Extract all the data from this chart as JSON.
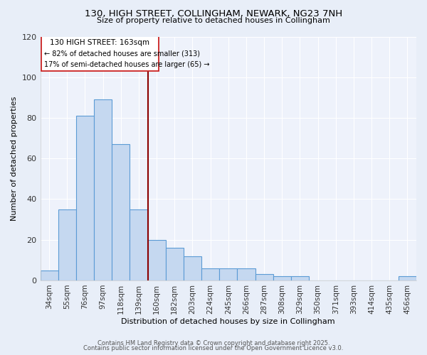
{
  "title": "130, HIGH STREET, COLLINGHAM, NEWARK, NG23 7NH",
  "subtitle": "Size of property relative to detached houses in Collingham",
  "xlabel": "Distribution of detached houses by size in Collingham",
  "ylabel": "Number of detached properties",
  "footer1": "Contains HM Land Registry data © Crown copyright and database right 2025.",
  "footer2": "Contains public sector information licensed under the Open Government Licence v3.0.",
  "categories": [
    "34sqm",
    "55sqm",
    "76sqm",
    "97sqm",
    "118sqm",
    "139sqm",
    "160sqm",
    "182sqm",
    "203sqm",
    "224sqm",
    "245sqm",
    "266sqm",
    "287sqm",
    "308sqm",
    "329sqm",
    "350sqm",
    "371sqm",
    "393sqm",
    "414sqm",
    "435sqm",
    "456sqm"
  ],
  "values": [
    5,
    35,
    81,
    89,
    67,
    35,
    20,
    16,
    12,
    6,
    6,
    6,
    3,
    2,
    2,
    0,
    0,
    0,
    0,
    0,
    2
  ],
  "bar_color": "#c5d8f0",
  "bar_edge_color": "#5b9bd5",
  "vline_x": 6.0,
  "vline_color": "#8b0000",
  "annotation_line1": "130 HIGH STREET: 163sqm",
  "annotation_line2": "← 82% of detached houses are smaller (313)",
  "annotation_line3": "17% of semi-detached houses are larger (65) →",
  "ylim": [
    0,
    120
  ],
  "background_color": "#e8eef8",
  "plot_bg_color": "#eef2fb",
  "grid_color": "#ffffff"
}
